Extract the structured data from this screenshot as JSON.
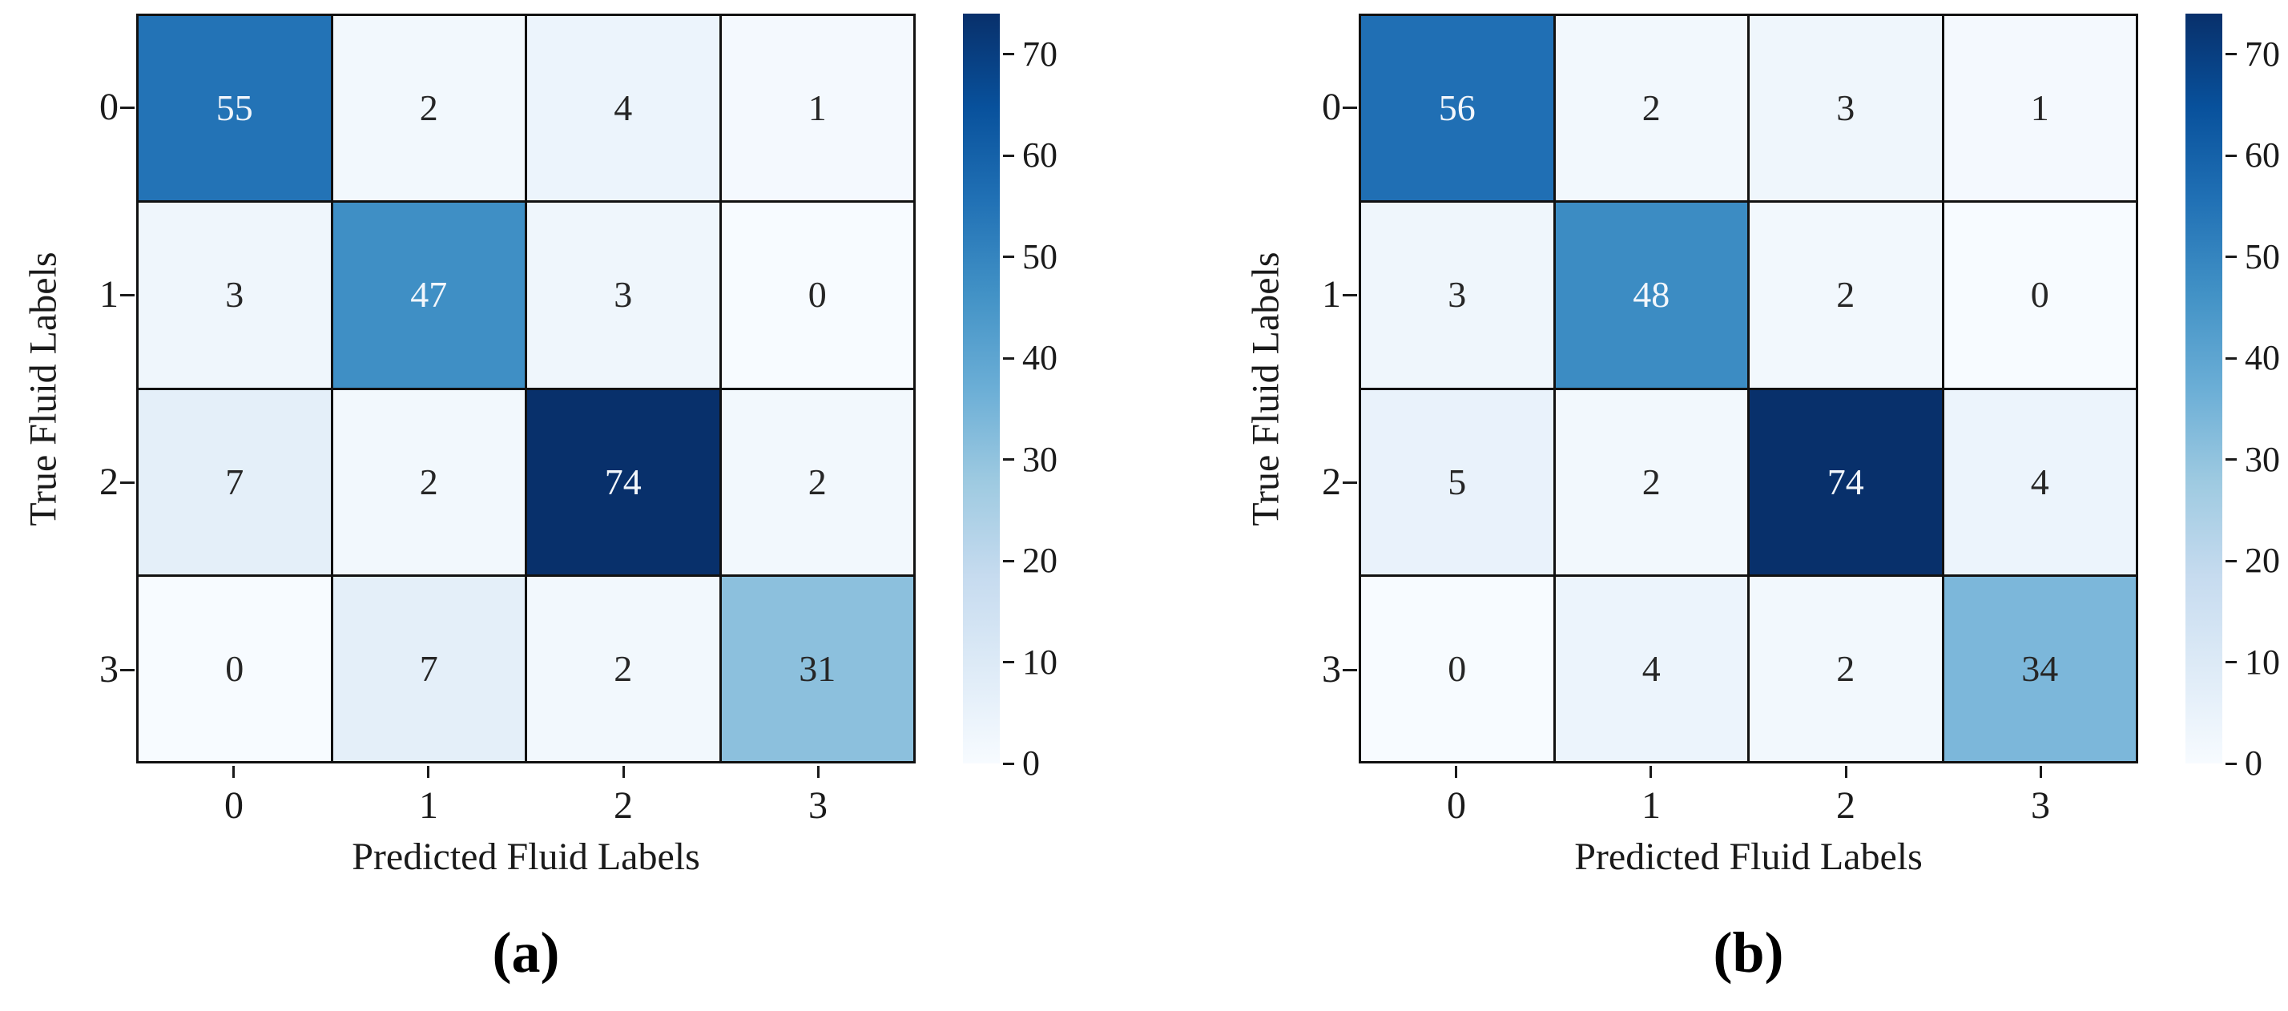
{
  "chart_data": [
    {
      "type": "heatmap",
      "caption": "(a)",
      "xlabel": "Predicted Fluid Labels",
      "ylabel": "True Fluid Labels",
      "x_tick_labels": [
        "0",
        "1",
        "2",
        "3"
      ],
      "y_tick_labels": [
        "0",
        "1",
        "2",
        "3"
      ],
      "values": [
        [
          55,
          2,
          4,
          1
        ],
        [
          3,
          47,
          3,
          0
        ],
        [
          7,
          2,
          74,
          2
        ],
        [
          0,
          7,
          2,
          31
        ]
      ],
      "vmin": 0,
      "vmax": 74,
      "colormap": "Blues",
      "colorbar_ticks": [
        0,
        10,
        20,
        30,
        40,
        50,
        60,
        70
      ],
      "colorbar_position": "right",
      "grid": "on"
    },
    {
      "type": "heatmap",
      "caption": "(b)",
      "xlabel": "Predicted Fluid Labels",
      "ylabel": "True Fluid Labels",
      "x_tick_labels": [
        "0",
        "1",
        "2",
        "3"
      ],
      "y_tick_labels": [
        "0",
        "1",
        "2",
        "3"
      ],
      "values": [
        [
          56,
          2,
          3,
          1
        ],
        [
          3,
          48,
          2,
          0
        ],
        [
          5,
          2,
          74,
          4
        ],
        [
          0,
          4,
          2,
          34
        ]
      ],
      "vmin": 0,
      "vmax": 74,
      "colormap": "Blues",
      "colorbar_ticks": [
        0,
        10,
        20,
        30,
        40,
        50,
        60,
        70
      ],
      "colorbar_position": "right",
      "grid": "on"
    }
  ],
  "colors": {
    "colormap_stops": [
      "#f7fbff",
      "#deebf7",
      "#c6dbef",
      "#9ecae1",
      "#6baed6",
      "#4292c6",
      "#2171b5",
      "#08519c",
      "#08306b"
    ],
    "grid_line": "#111111",
    "tick_color": "#1a1a1a",
    "annot_dark": "#262626",
    "annot_light": "#f2f6fb"
  }
}
